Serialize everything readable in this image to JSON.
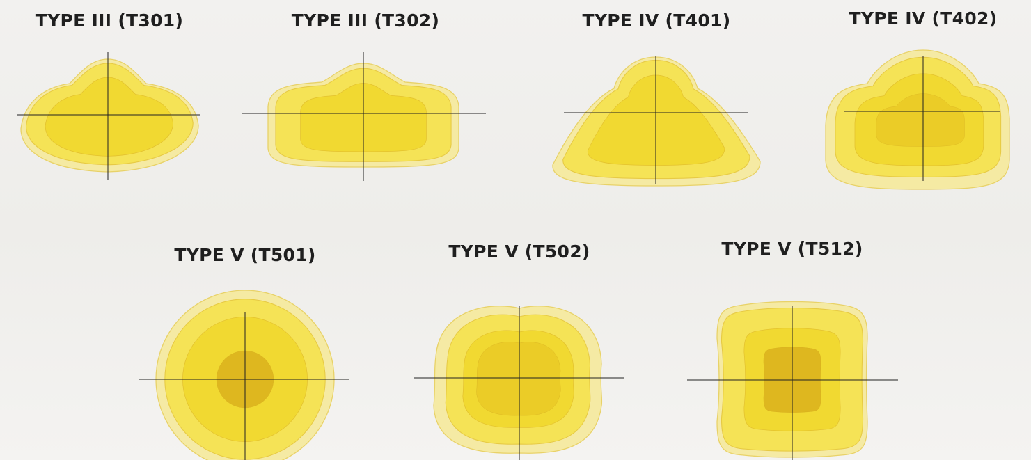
{
  "diagrams": [
    {
      "title": "TYPE III (T301)"
    },
    {
      "title": "TYPE III (T302)"
    },
    {
      "title": "TYPE IV (T401)"
    },
    {
      "title": "TYPE IV (T402)"
    },
    {
      "title": "TYPE V (T501)"
    },
    {
      "title": "TYPE V (T502)"
    },
    {
      "title": "TYPE V (T512)"
    }
  ]
}
